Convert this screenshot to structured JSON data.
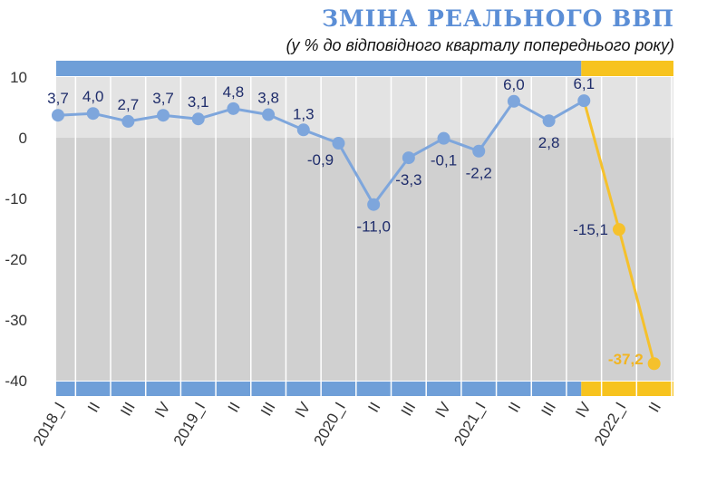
{
  "chart_data": {
    "type": "line",
    "title": "ЗМІНА РЕАЛЬНОГО ВВП",
    "subtitle": "(у % до відповідного кварталу попереднього року)",
    "categories": [
      "2018_I",
      "II",
      "III",
      "IV",
      "2019_I",
      "II",
      "III",
      "IV",
      "2020_I",
      "II",
      "III",
      "IV",
      "2021_I",
      "II",
      "III",
      "IV",
      "2022_I",
      "II"
    ],
    "series": [
      {
        "values": [
          3.7,
          4.0,
          2.7,
          3.7,
          3.1,
          4.8,
          3.8,
          1.3,
          -0.9,
          -11.0,
          -3.3,
          -0.1,
          -2.2,
          6.0,
          2.8,
          6.1,
          null,
          null
        ]
      },
      {
        "values": [
          null,
          null,
          null,
          null,
          null,
          null,
          null,
          null,
          null,
          null,
          null,
          null,
          null,
          null,
          null,
          6.1,
          -15.1,
          -37.2
        ]
      }
    ],
    "data_labels": [
      "3,7",
      "4,0",
      "2,7",
      "3,7",
      "3,1",
      "4,8",
      "3,8",
      "1,3",
      "-0,9",
      "-11,0",
      "-3,3",
      "-0,1",
      "-2,2",
      "6,0",
      "2,8",
      "6,1",
      "-15,1",
      "-37,2"
    ],
    "y_ticks": [
      10,
      0,
      -10,
      -20,
      -30,
      -40
    ],
    "y_tick_labels": [
      "10",
      "0",
      "-10",
      "-20",
      "-30",
      "-40"
    ],
    "ylim": [
      -40,
      10
    ],
    "colors": {
      "actual": "#7ea6dc",
      "forecast": "#f5c12c",
      "band_blue": "#6f9fd8",
      "band_orange": "#f7c31e",
      "plot_positive": "#e3e3e3",
      "plot_negative": "#d0d0d0",
      "title": "#5b8ed6",
      "label": "#1f2d6b",
      "highlight_label": "#f2b520"
    },
    "grid": {
      "vertical": true,
      "horizontal": false
    }
  }
}
